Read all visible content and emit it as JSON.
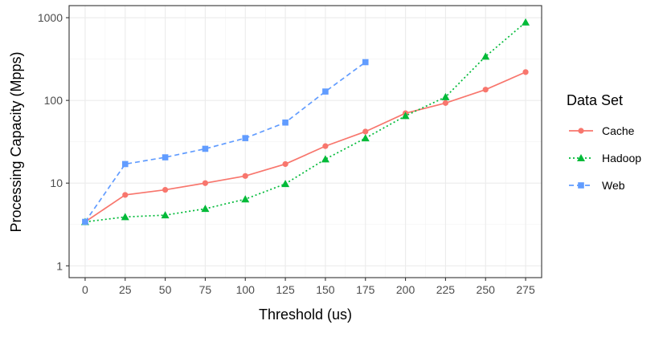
{
  "chart_data": {
    "type": "line",
    "xlabel": "Threshold (us)",
    "ylabel": "Processing Capacity (Mpps)",
    "y_scale": "log10",
    "xlim": [
      -10,
      285
    ],
    "ylim": [
      0.72,
      1400
    ],
    "x_ticks": [
      0,
      25,
      50,
      75,
      100,
      125,
      150,
      175,
      200,
      225,
      250,
      275
    ],
    "y_ticks": [
      1,
      10,
      100,
      1000
    ],
    "grid": true,
    "legend": {
      "title": "Data Set",
      "position": "right"
    },
    "series": [
      {
        "name": "Cache",
        "color": "#F8766D",
        "marker": "circle",
        "dash": "solid",
        "x": [
          0,
          25,
          50,
          75,
          100,
          125,
          150,
          175,
          200,
          225,
          250,
          275
        ],
        "y": [
          3.4,
          7.2,
          8.3,
          10,
          12.2,
          17,
          28,
          42,
          70,
          93,
          135,
          220
        ]
      },
      {
        "name": "Hadoop",
        "color": "#00BA38",
        "marker": "triangle",
        "dash": "dotted",
        "x": [
          0,
          25,
          50,
          75,
          100,
          125,
          150,
          175,
          200,
          225,
          250,
          275
        ],
        "y": [
          3.4,
          3.9,
          4.1,
          4.9,
          6.4,
          9.8,
          19.5,
          35,
          65,
          110,
          340,
          880
        ]
      },
      {
        "name": "Web",
        "color": "#619CFF",
        "marker": "square",
        "dash": "dashed",
        "x": [
          0,
          25,
          50,
          75,
          100,
          125,
          150,
          175
        ],
        "y": [
          3.4,
          17,
          20.5,
          26,
          35,
          54,
          128,
          290
        ]
      }
    ]
  }
}
